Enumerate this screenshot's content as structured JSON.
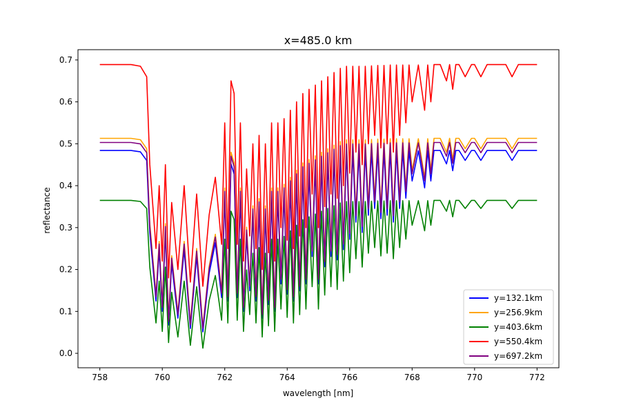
{
  "chart_data": {
    "type": "line",
    "title": "x=485.0 km",
    "xlabel": "wavelength [nm]",
    "ylabel": "reflectance",
    "xlim": [
      757.3,
      772.7
    ],
    "ylim": [
      -0.0345,
      0.7245
    ],
    "xticks": [
      758,
      760,
      762,
      764,
      766,
      768,
      770,
      772
    ],
    "yticks": [
      0.0,
      0.1,
      0.2,
      0.3,
      0.4,
      0.5,
      0.6,
      0.7
    ],
    "ytick_labels": [
      "0.0",
      "0.1",
      "0.2",
      "0.3",
      "0.4",
      "0.5",
      "0.6",
      "0.7"
    ],
    "grid": false,
    "legend_position": "lower-right",
    "series": [
      {
        "name": "y=132.1km",
        "color": "#0000ff",
        "continuum": 0.484,
        "scale": 0.7
      },
      {
        "name": "y=256.9km",
        "color": "#ffa500",
        "continuum": 0.513,
        "scale": 0.74
      },
      {
        "name": "y=403.6km",
        "color": "#008000",
        "continuum": 0.365,
        "scale": 0.53
      },
      {
        "name": "y=550.4km",
        "color": "#ff0000",
        "continuum": 0.689,
        "scale": 1.0
      },
      {
        "name": "y=697.2km",
        "color": "#800080",
        "continuum": 0.503,
        "scale": 0.73
      }
    ],
    "reference_profile": {
      "description_free_note": "",
      "x": [
        758.0,
        759.0,
        759.3,
        759.5,
        759.6,
        759.7,
        759.8,
        759.9,
        760.0,
        760.1,
        760.2,
        760.3,
        760.5,
        760.7,
        760.9,
        761.1,
        761.3,
        761.5,
        761.7,
        761.9,
        762.0,
        762.1,
        762.2,
        762.3,
        762.4,
        762.5,
        762.6,
        762.7,
        762.8,
        762.9,
        763.0,
        763.1,
        763.2,
        763.3,
        763.4,
        763.5,
        763.6,
        763.7,
        763.8,
        763.9,
        764.0,
        764.1,
        764.2,
        764.3,
        764.4,
        764.5,
        764.6,
        764.7,
        764.8,
        764.9,
        765.0,
        765.1,
        765.2,
        765.3,
        765.4,
        765.5,
        765.6,
        765.7,
        765.8,
        765.9,
        766.0,
        766.1,
        766.2,
        766.3,
        766.4,
        766.5,
        766.6,
        766.7,
        766.8,
        766.9,
        767.0,
        767.1,
        767.2,
        767.3,
        767.4,
        767.5,
        767.6,
        767.7,
        767.8,
        767.9,
        768.0,
        768.2,
        768.4,
        768.5,
        768.6,
        768.7,
        768.9,
        769.1,
        769.2,
        769.3,
        769.4,
        769.5,
        769.7,
        769.9,
        770.0,
        770.2,
        770.4,
        770.6,
        770.8,
        771.0,
        771.2,
        771.4,
        771.6,
        771.8,
        772.0
      ],
      "y": [
        0.689,
        0.689,
        0.685,
        0.66,
        0.45,
        0.35,
        0.25,
        0.4,
        0.22,
        0.45,
        0.18,
        0.36,
        0.2,
        0.4,
        0.17,
        0.38,
        0.16,
        0.33,
        0.42,
        0.26,
        0.55,
        0.25,
        0.65,
        0.62,
        0.26,
        0.55,
        0.22,
        0.44,
        0.28,
        0.5,
        0.25,
        0.52,
        0.2,
        0.5,
        0.24,
        0.55,
        0.22,
        0.55,
        0.3,
        0.56,
        0.27,
        0.58,
        0.25,
        0.6,
        0.28,
        0.62,
        0.3,
        0.63,
        0.38,
        0.64,
        0.3,
        0.65,
        0.35,
        0.66,
        0.38,
        0.67,
        0.37,
        0.68,
        0.4,
        0.685,
        0.43,
        0.685,
        0.48,
        0.685,
        0.45,
        0.685,
        0.5,
        0.686,
        0.52,
        0.687,
        0.49,
        0.687,
        0.5,
        0.688,
        0.48,
        0.688,
        0.52,
        0.688,
        0.55,
        0.688,
        0.6,
        0.688,
        0.58,
        0.688,
        0.6,
        0.689,
        0.689,
        0.65,
        0.689,
        0.63,
        0.689,
        0.689,
        0.66,
        0.689,
        0.689,
        0.66,
        0.689,
        0.689,
        0.689,
        0.689,
        0.66,
        0.689,
        0.689,
        0.689,
        0.689
      ]
    }
  }
}
